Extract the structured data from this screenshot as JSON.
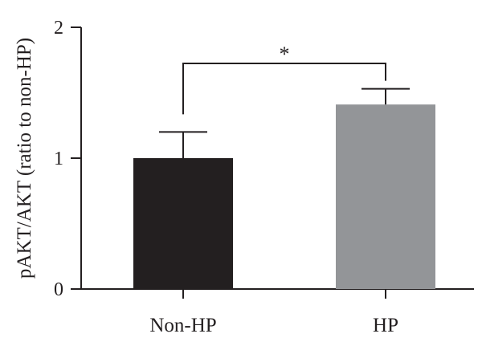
{
  "chart_data": {
    "type": "bar",
    "title": "",
    "xlabel": "",
    "ylabel": "pAKT/AKT (ratio to non-HP)",
    "ylim": [
      0,
      2
    ],
    "yticks": [
      "0",
      "1",
      "2"
    ],
    "categories": [
      "Non-HP",
      "HP"
    ],
    "values": [
      1.0,
      1.41
    ],
    "errors": [
      0.2,
      0.12
    ],
    "bar_colors": [
      "#231f20",
      "#939598"
    ],
    "significance": {
      "between": [
        "Non-HP",
        "HP"
      ],
      "label": "*"
    },
    "grid": false,
    "legend": "none"
  }
}
